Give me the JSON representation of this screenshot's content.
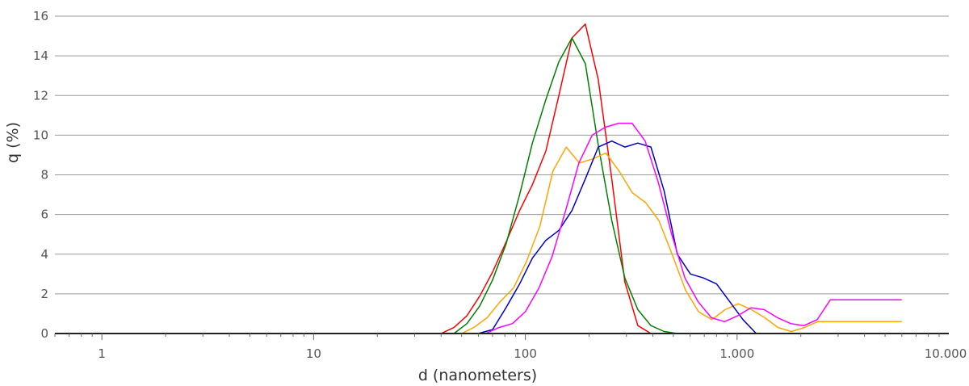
{
  "chart_data": {
    "type": "line",
    "xlabel": "d (nanometers)",
    "ylabel": "q (%)",
    "x_scale": "log",
    "xlim": [
      0.6,
      10000
    ],
    "ylim": [
      0,
      16
    ],
    "grid": "horizontal",
    "x_ticks": [
      {
        "value": 1,
        "label": "1"
      },
      {
        "value": 10,
        "label": "10"
      },
      {
        "value": 100,
        "label": "100"
      },
      {
        "value": 1000,
        "label": "1.000"
      },
      {
        "value": 10000,
        "label": "10.000"
      }
    ],
    "y_ticks": [
      {
        "value": 0,
        "label": "0"
      },
      {
        "value": 2,
        "label": "2"
      },
      {
        "value": 4,
        "label": "4"
      },
      {
        "value": 6,
        "label": "6"
      },
      {
        "value": 8,
        "label": "8"
      },
      {
        "value": 10,
        "label": "10"
      },
      {
        "value": 12,
        "label": "12"
      },
      {
        "value": 14,
        "label": "14"
      },
      {
        "value": 16,
        "label": "16"
      }
    ],
    "series": [
      {
        "color": "#ff0000",
        "x": [
          0.85,
          40,
          46,
          53,
          61,
          70,
          81,
          94,
          108,
          125,
          144,
          166,
          192,
          221,
          256,
          295,
          340,
          392,
          452,
          522,
          602,
          694,
          900,
          5500
        ],
        "y": [
          0,
          0,
          0.3,
          0.9,
          1.9,
          3.1,
          4.6,
          6.2,
          7.5,
          9.2,
          12.0,
          14.9,
          15.6,
          12.8,
          7.8,
          2.6,
          0.4,
          0,
          0,
          0,
          0,
          0,
          0,
          0
        ]
      },
      {
        "color": "#008000",
        "x": [
          0.85,
          46,
          53,
          61,
          70,
          81,
          94,
          108,
          125,
          144,
          166,
          192,
          221,
          256,
          295,
          340,
          392,
          452,
          522,
          602,
          694,
          800,
          900,
          5500
        ],
        "y": [
          0,
          0,
          0.5,
          1.4,
          2.7,
          4.5,
          7.0,
          9.6,
          11.8,
          13.7,
          14.9,
          13.6,
          9.5,
          5.7,
          2.8,
          1.2,
          0.4,
          0.1,
          0,
          0,
          0,
          0,
          0,
          0
        ],
        "x_shift_note": ""
      },
      {
        "color": "#ffa500",
        "x": [
          0.85,
          50,
          57,
          66,
          76,
          88,
          101,
          117,
          135,
          156,
          180,
          208,
          240,
          277,
          320,
          370,
          427,
          493,
          570,
          658,
          760,
          877,
          1013,
          1170,
          1351,
          1560,
          1802,
          2081,
          2403,
          2775,
          3205,
          3702,
          4275,
          4937,
          5700,
          6000
        ],
        "y": [
          0,
          0,
          0.3,
          0.8,
          1.6,
          2.3,
          3.6,
          5.4,
          8.2,
          9.4,
          8.6,
          8.8,
          9.1,
          8.2,
          7.1,
          6.6,
          5.7,
          4.0,
          2.2,
          1.1,
          0.7,
          1.2,
          1.5,
          1.2,
          0.8,
          0.3,
          0.1,
          0.3,
          0.6,
          0.6,
          0.6,
          0.6,
          0.6,
          0.6,
          0.6,
          0.6
        ]
      },
      {
        "color": "#0000cc",
        "x": [
          0.85,
          60,
          70,
          81,
          94,
          108,
          125,
          144,
          166,
          192,
          221,
          256,
          295,
          340,
          392,
          452,
          522,
          602,
          694,
          800,
          924,
          1066,
          1231,
          1421,
          1640,
          1893,
          2186,
          2524,
          2914,
          5500
        ],
        "y": [
          0,
          0,
          0.2,
          1.3,
          2.5,
          3.8,
          4.7,
          5.2,
          6.2,
          7.8,
          9.4,
          9.7,
          9.4,
          9.6,
          9.4,
          7.2,
          4.0,
          3.0,
          2.8,
          2.5,
          1.6,
          0.7,
          0,
          0,
          0,
          0,
          0,
          0,
          0,
          0
        ]
      },
      {
        "color": "#ff00ff",
        "x": [
          0.85,
          65,
          75,
          87,
          100,
          116,
          134,
          155,
          179,
          207,
          239,
          276,
          319,
          368,
          425,
          491,
          567,
          655,
          756,
          873,
          1008,
          1164,
          1344,
          1552,
          1792,
          2069,
          2389,
          2759,
          3186,
          3679,
          4248,
          4905,
          5664,
          6000
        ],
        "y": [
          0,
          0,
          0.3,
          0.5,
          1.1,
          2.3,
          3.9,
          6.2,
          8.6,
          10.0,
          10.4,
          10.6,
          10.6,
          9.7,
          7.6,
          5.0,
          2.8,
          1.6,
          0.8,
          0.6,
          0.9,
          1.3,
          1.2,
          0.8,
          0.5,
          0.4,
          0.7,
          1.7,
          1.7,
          1.7,
          1.7,
          1.7,
          1.7,
          1.7
        ]
      }
    ]
  }
}
